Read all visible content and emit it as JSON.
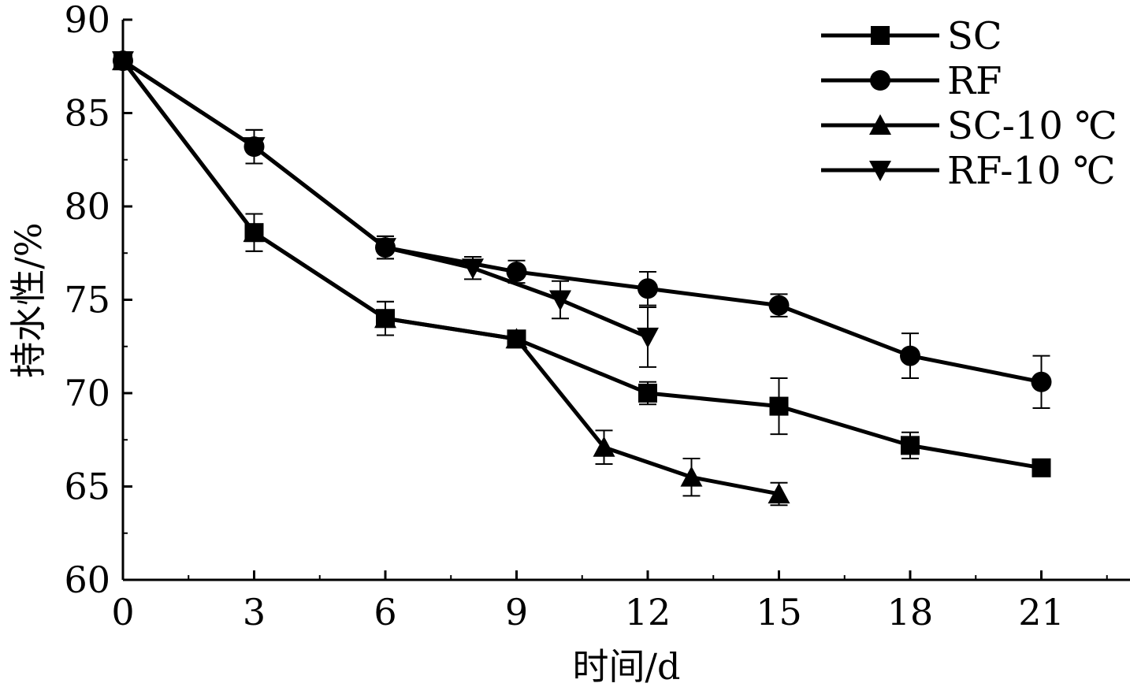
{
  "chart_data": {
    "type": "line",
    "title": "",
    "xlabel": "时间/d",
    "ylabel": "持水性/%",
    "xlim": [
      0,
      23
    ],
    "ylim": [
      60,
      90
    ],
    "xticks": [
      0,
      3,
      6,
      9,
      12,
      15,
      18,
      21
    ],
    "yticks": [
      60,
      65,
      70,
      75,
      80,
      85,
      90
    ],
    "grid": false,
    "legend": "top-right",
    "series": [
      {
        "name": "SC",
        "marker": "square",
        "x": [
          0,
          3,
          6,
          9,
          12,
          15,
          18,
          21
        ],
        "y": [
          87.8,
          78.6,
          74.0,
          72.9,
          70.0,
          69.3,
          67.2,
          66.0
        ],
        "err": [
          0.3,
          1.0,
          0.9,
          0.3,
          0.6,
          1.5,
          0.7,
          0.3
        ]
      },
      {
        "name": "RF",
        "marker": "circle",
        "x": [
          0,
          3,
          6,
          9,
          12,
          15,
          18,
          21
        ],
        "y": [
          87.8,
          83.2,
          77.8,
          76.5,
          75.6,
          74.7,
          72.0,
          70.6
        ],
        "err": [
          0.3,
          0.9,
          0.6,
          0.6,
          0.9,
          0.6,
          1.2,
          1.4
        ]
      },
      {
        "name": "SC-10 ℃",
        "marker": "triangle-up",
        "x": [
          0,
          3,
          6,
          9,
          11,
          13,
          15
        ],
        "y": [
          87.8,
          78.6,
          74.0,
          72.9,
          67.1,
          65.5,
          64.6
        ],
        "err": [
          0.3,
          1.0,
          0.9,
          0.3,
          0.9,
          1.0,
          0.6
        ]
      },
      {
        "name": "RF-10 ℃",
        "marker": "triangle-down",
        "x": [
          0,
          3,
          6,
          8,
          10,
          12
        ],
        "y": [
          87.8,
          83.2,
          77.8,
          76.7,
          75.0,
          73.0
        ],
        "err": [
          0.3,
          0.9,
          0.6,
          0.6,
          1.0,
          1.6
        ]
      }
    ]
  }
}
